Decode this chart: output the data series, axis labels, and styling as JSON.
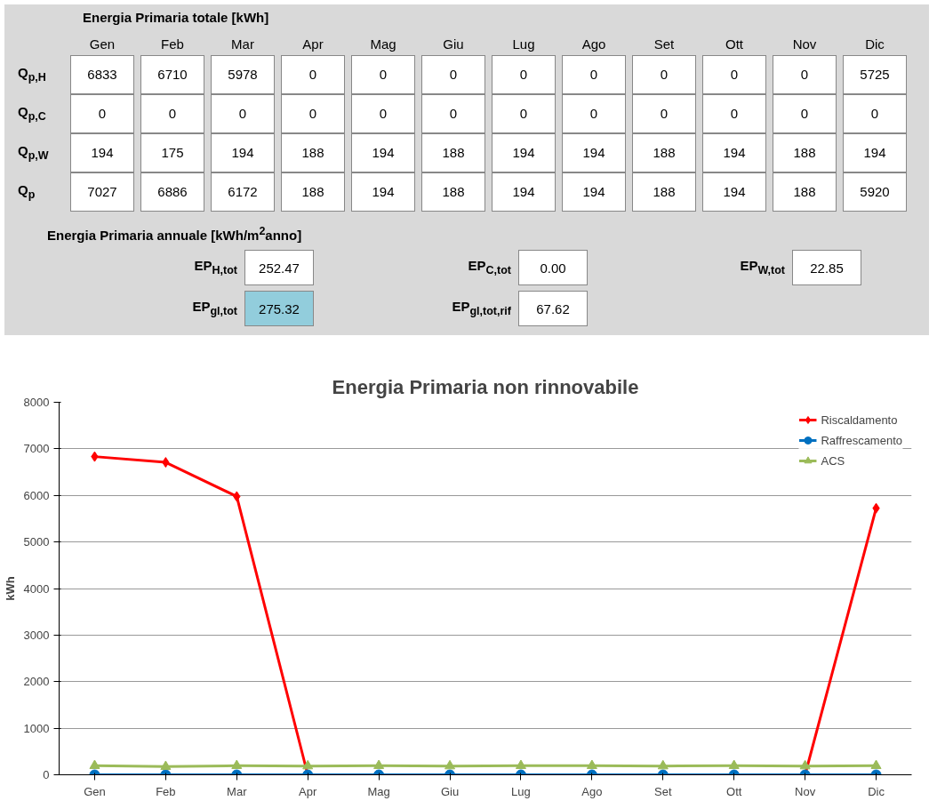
{
  "chart_data": {
    "type": "line",
    "title": "Energia Primaria non rinnovabile",
    "ylabel": "kWh",
    "categories": [
      "Gen",
      "Feb",
      "Mar",
      "Apr",
      "Mag",
      "Giu",
      "Lug",
      "Ago",
      "Set",
      "Ott",
      "Nov",
      "Dic"
    ],
    "series": [
      {
        "name": "Riscaldamento",
        "color": "#ff0000",
        "marker": "diamond",
        "values": [
          6833,
          6710,
          5978,
          0,
          0,
          0,
          0,
          0,
          0,
          0,
          0,
          5725
        ]
      },
      {
        "name": "Raffrescamento",
        "color": "#0070c0",
        "marker": "circle",
        "values": [
          0,
          0,
          0,
          0,
          0,
          0,
          0,
          0,
          0,
          0,
          0,
          0
        ]
      },
      {
        "name": "ACS",
        "color": "#9bbb59",
        "marker": "triangle",
        "values": [
          194,
          175,
          194,
          188,
          194,
          188,
          194,
          194,
          188,
          194,
          188,
          194
        ]
      }
    ],
    "totals": [
      "7027",
      "6886",
      "6172",
      "188",
      "194",
      "188",
      "194",
      "194",
      "188",
      "194",
      "188",
      "5920"
    ],
    "data_labels": true,
    "annotations": [
      "Energia Primaria totale [kWh]",
      "Q$_{p,H}$",
      "Q$_{p,C}$",
      "Q$_{p,W}$",
      "Q$_{p}$",
      "Energia Primaria annuale [kWh/m$^{2}$anno]",
      "EP$_{H,tot}$",
      "252.47",
      "EP$_{C,tot}$",
      "0.00",
      "EP$_{W,tot}$",
      "22.85",
      "EP$_{gl,tot}$",
      "275.32",
      "EP$_{gl,tot,rif}$",
      "67.62"
    ],
    "ylim": [
      0,
      8000
    ],
    "yticks": [
      0,
      1000,
      2000,
      3000,
      4000,
      5000,
      6000,
      7000,
      8000
    ],
    "grid": "y",
    "legend": "top right",
    "line_style": "solid"
  }
}
